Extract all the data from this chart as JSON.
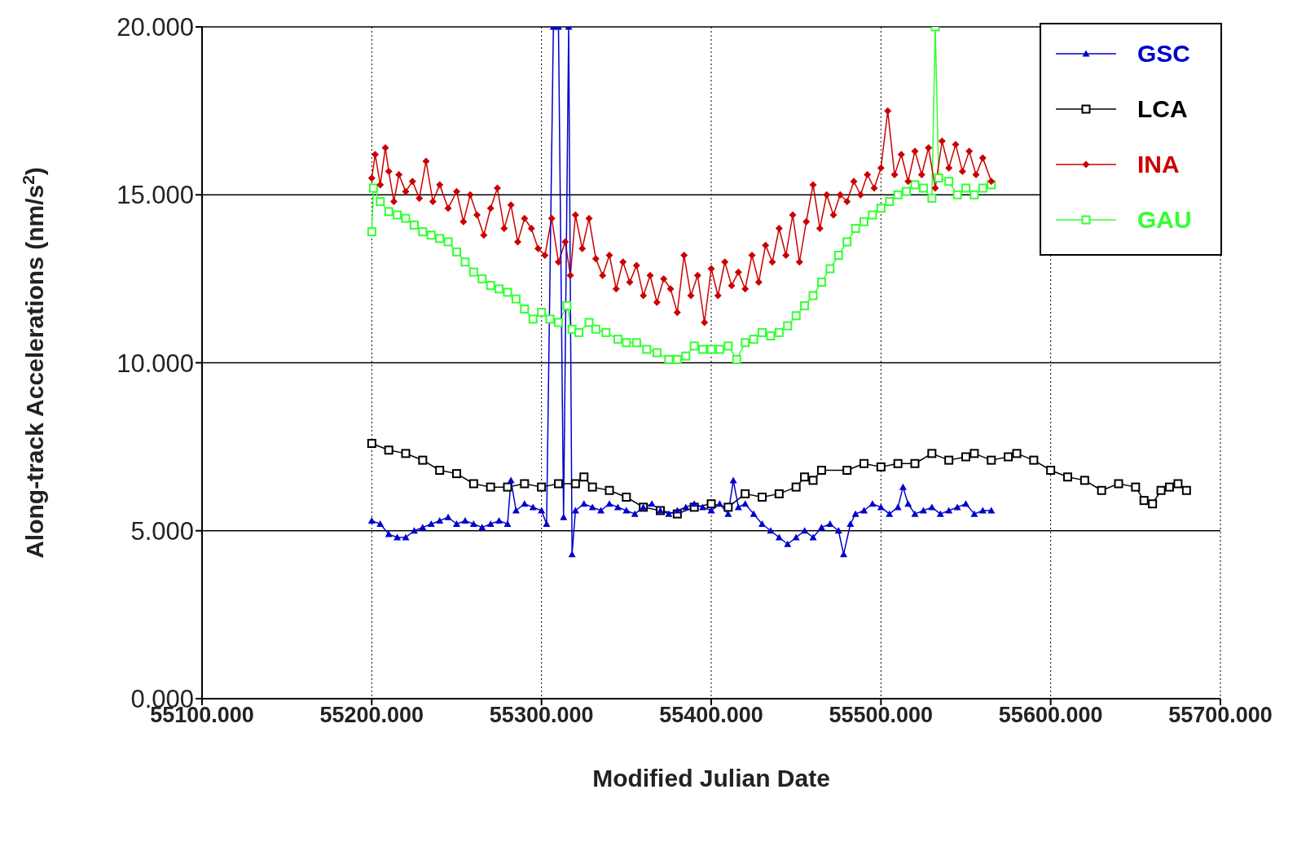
{
  "chart_data": {
    "type": "line",
    "xlabel": "Modified Julian Date",
    "ylabel": "Along-track Accelerations (nm/s$^{2}$)",
    "xlim": [
      55100,
      55700
    ],
    "xticks": [
      {
        "value": 55100,
        "label": "55100.000"
      },
      {
        "value": 55200,
        "label": "55200.000"
      },
      {
        "value": 55300,
        "label": "55300.000"
      },
      {
        "value": 55400,
        "label": "55400.000"
      },
      {
        "value": 55500,
        "label": "55500.000"
      },
      {
        "value": 55600,
        "label": "55600.000"
      },
      {
        "value": 55700,
        "label": "55700.000"
      }
    ],
    "ylim": [
      0,
      20
    ],
    "yticks": [
      {
        "value": 0,
        "label": "0.000"
      },
      {
        "value": 5,
        "label": "5.000"
      },
      {
        "value": 10,
        "label": "10.000"
      },
      {
        "value": 15,
        "label": "15.000"
      },
      {
        "value": 20,
        "label": "20.000"
      }
    ],
    "grid": true,
    "legend": "top right",
    "series": [
      {
        "name": "GSC",
        "color": "#0000cc",
        "marker": "triangle",
        "x": [
          55200,
          55205,
          55210,
          55215,
          55220,
          55225,
          55230,
          55235,
          55240,
          55245,
          55250,
          55255,
          55260,
          55265,
          55270,
          55275,
          55280,
          55282,
          55285,
          55290,
          55295,
          55300,
          55303,
          55307,
          55310,
          55313,
          55316,
          55318,
          55320,
          55325,
          55330,
          55335,
          55340,
          55345,
          55350,
          55355,
          55360,
          55365,
          55370,
          55375,
          55380,
          55385,
          55390,
          55395,
          55400,
          55405,
          55410,
          55413,
          55416,
          55420,
          55425,
          55430,
          55435,
          55440,
          55445,
          55450,
          55455,
          55460,
          55465,
          55470,
          55475,
          55478,
          55482,
          55485,
          55490,
          55495,
          55500,
          55505,
          55510,
          55513,
          55516,
          55520,
          55525,
          55530,
          55535,
          55540,
          55545,
          55550,
          55555,
          55560,
          55565
        ],
        "values": [
          5.3,
          5.2,
          4.9,
          4.8,
          4.8,
          5.0,
          5.1,
          5.2,
          5.3,
          5.4,
          5.2,
          5.3,
          5.2,
          5.1,
          5.2,
          5.3,
          5.2,
          6.5,
          5.6,
          5.8,
          5.7,
          5.6,
          5.2,
          20,
          20,
          5.4,
          20,
          4.3,
          5.6,
          5.8,
          5.7,
          5.6,
          5.8,
          5.7,
          5.6,
          5.5,
          5.7,
          5.8,
          5.6,
          5.5,
          5.6,
          5.7,
          5.8,
          5.7,
          5.6,
          5.8,
          5.5,
          6.5,
          5.7,
          5.8,
          5.5,
          5.2,
          5.0,
          4.8,
          4.6,
          4.8,
          5.0,
          4.8,
          5.1,
          5.2,
          5.0,
          4.3,
          5.2,
          5.5,
          5.6,
          5.8,
          5.7,
          5.5,
          5.7,
          6.3,
          5.8,
          5.5,
          5.6,
          5.7,
          5.5,
          5.6,
          5.7,
          5.8,
          5.5,
          5.6,
          5.6
        ]
      },
      {
        "name": "LCA",
        "color": "#000000",
        "marker": "square",
        "x": [
          55200,
          55210,
          55220,
          55230,
          55240,
          55250,
          55260,
          55270,
          55280,
          55290,
          55300,
          55310,
          55320,
          55325,
          55330,
          55340,
          55350,
          55360,
          55370,
          55380,
          55390,
          55400,
          55410,
          55420,
          55430,
          55440,
          55450,
          55455,
          55460,
          55465,
          55480,
          55490,
          55500,
          55510,
          55520,
          55530,
          55540,
          55550,
          55555,
          55565,
          55575,
          55580,
          55590,
          55600,
          55610,
          55620,
          55630,
          55640,
          55650,
          55655,
          55660,
          55665,
          55670,
          55675,
          55680
        ],
        "values": [
          7.6,
          7.4,
          7.3,
          7.1,
          6.8,
          6.7,
          6.4,
          6.3,
          6.3,
          6.4,
          6.3,
          6.4,
          6.4,
          6.6,
          6.3,
          6.2,
          6.0,
          5.7,
          5.6,
          5.5,
          5.7,
          5.8,
          5.7,
          6.1,
          6.0,
          6.1,
          6.3,
          6.6,
          6.5,
          6.8,
          6.8,
          7.0,
          6.9,
          7.0,
          7.0,
          7.3,
          7.1,
          7.2,
          7.3,
          7.1,
          7.2,
          7.3,
          7.1,
          6.8,
          6.6,
          6.5,
          6.2,
          6.4,
          6.3,
          5.9,
          5.8,
          6.2,
          6.3,
          6.4,
          6.2
        ]
      },
      {
        "name": "INA",
        "color": "#cc0000",
        "marker": "diamond",
        "x": [
          55200,
          55202,
          55205,
          55208,
          55210,
          55213,
          55216,
          55220,
          55224,
          55228,
          55232,
          55236,
          55240,
          55245,
          55250,
          55254,
          55258,
          55262,
          55266,
          55270,
          55274,
          55278,
          55282,
          55286,
          55290,
          55294,
          55298,
          55302,
          55306,
          55310,
          55314,
          55317,
          55320,
          55324,
          55328,
          55332,
          55336,
          55340,
          55344,
          55348,
          55352,
          55356,
          55360,
          55364,
          55368,
          55372,
          55376,
          55380,
          55384,
          55388,
          55392,
          55396,
          55400,
          55404,
          55408,
          55412,
          55416,
          55420,
          55424,
          55428,
          55432,
          55436,
          55440,
          55444,
          55448,
          55452,
          55456,
          55460,
          55464,
          55468,
          55472,
          55476,
          55480,
          55484,
          55488,
          55492,
          55496,
          55500,
          55504,
          55508,
          55512,
          55516,
          55520,
          55524,
          55528,
          55532,
          55536,
          55540,
          55544,
          55548,
          55552,
          55556,
          55560,
          55565
        ],
        "values": [
          15.5,
          16.2,
          15.3,
          16.4,
          15.7,
          14.8,
          15.6,
          15.1,
          15.4,
          14.9,
          16.0,
          14.8,
          15.3,
          14.6,
          15.1,
          14.2,
          15.0,
          14.4,
          13.8,
          14.6,
          15.2,
          14.0,
          14.7,
          13.6,
          14.3,
          14.0,
          13.4,
          13.2,
          14.3,
          13.0,
          13.6,
          12.6,
          14.4,
          13.4,
          14.3,
          13.1,
          12.6,
          13.2,
          12.2,
          13.0,
          12.4,
          12.9,
          12.0,
          12.6,
          11.8,
          12.5,
          12.2,
          11.5,
          13.2,
          12.0,
          12.6,
          11.2,
          12.8,
          12.0,
          13.0,
          12.3,
          12.7,
          12.2,
          13.2,
          12.4,
          13.5,
          13.0,
          14.0,
          13.2,
          14.4,
          13.0,
          14.2,
          15.3,
          14.0,
          15.0,
          14.4,
          15.0,
          14.8,
          15.4,
          15.0,
          15.6,
          15.2,
          15.8,
          17.5,
          15.6,
          16.2,
          15.4,
          16.3,
          15.6,
          16.4,
          15.2,
          16.6,
          15.8,
          16.5,
          15.7,
          16.3,
          15.6,
          16.1,
          15.4
        ]
      },
      {
        "name": "GAU",
        "color": "#33ff33",
        "marker": "square",
        "x": [
          55200,
          55201,
          55205,
          55210,
          55215,
          55220,
          55225,
          55230,
          55235,
          55240,
          55245,
          55250,
          55255,
          55260,
          55265,
          55270,
          55275,
          55280,
          55285,
          55290,
          55295,
          55300,
          55305,
          55310,
          55315,
          55318,
          55322,
          55328,
          55332,
          55338,
          55345,
          55350,
          55356,
          55362,
          55368,
          55375,
          55380,
          55385,
          55390,
          55395,
          55400,
          55405,
          55410,
          55415,
          55420,
          55425,
          55430,
          55435,
          55440,
          55445,
          55450,
          55455,
          55460,
          55465,
          55470,
          55475,
          55480,
          55485,
          55490,
          55495,
          55500,
          55505,
          55510,
          55515,
          55520,
          55525,
          55530,
          55532,
          55534,
          55540,
          55545,
          55550,
          55555,
          55560,
          55565
        ],
        "values": [
          13.9,
          15.2,
          14.8,
          14.5,
          14.4,
          14.3,
          14.1,
          13.9,
          13.8,
          13.7,
          13.6,
          13.3,
          13.0,
          12.7,
          12.5,
          12.3,
          12.2,
          12.1,
          11.9,
          11.6,
          11.3,
          11.5,
          11.3,
          11.2,
          11.7,
          11.0,
          10.9,
          11.2,
          11.0,
          10.9,
          10.7,
          10.6,
          10.6,
          10.4,
          10.3,
          10.1,
          10.1,
          10.2,
          10.5,
          10.4,
          10.4,
          10.4,
          10.5,
          10.1,
          10.6,
          10.7,
          10.9,
          10.8,
          10.9,
          11.1,
          11.4,
          11.7,
          12.0,
          12.4,
          12.8,
          13.2,
          13.6,
          14.0,
          14.2,
          14.4,
          14.6,
          14.8,
          15.0,
          15.1,
          15.3,
          15.2,
          14.9,
          20,
          15.5,
          15.4,
          15.0,
          15.2,
          15.0,
          15.2,
          15.3
        ]
      }
    ]
  }
}
